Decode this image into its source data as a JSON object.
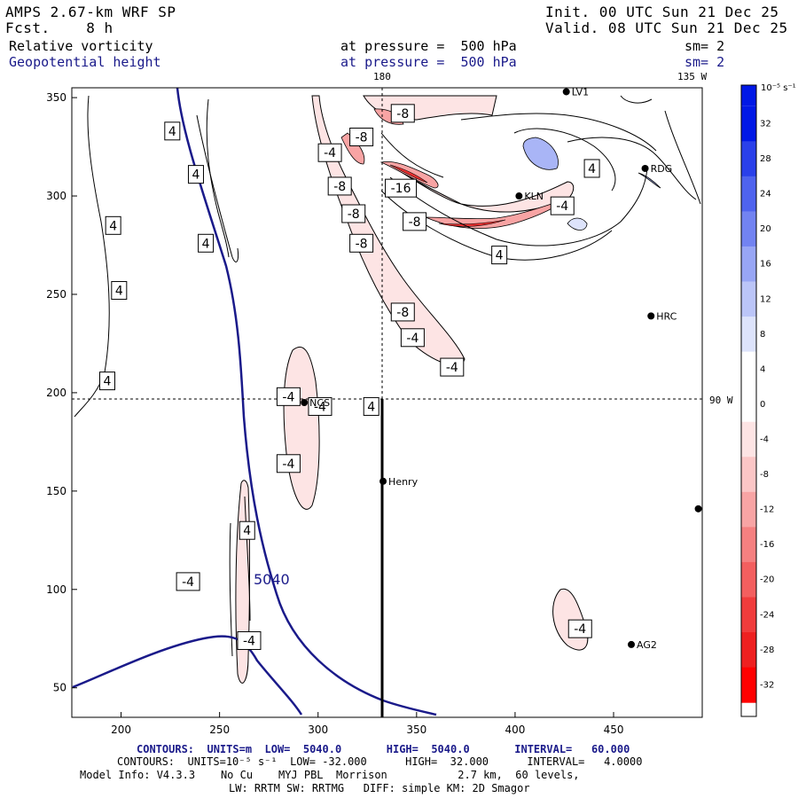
{
  "header": {
    "model": "AMPS 2.67-km WRF SP",
    "forecast": "Fcst.    8 h",
    "init": "Init. 00 UTC Sun 21 Dec 25",
    "valid": "Valid. 08 UTC Sun 21 Dec 25",
    "field1_name": "Relative vorticity",
    "field1_level": "at pressure =  500 hPa",
    "field1_sm": "sm= 2",
    "field2_name": "Geopotential height",
    "field2_level": "at pressure =  500 hPa",
    "field2_sm": "sm= 2"
  },
  "map": {
    "longitude_labels": [
      "180",
      "135 W",
      "90 W"
    ],
    "x_ticks": [
      "200",
      "250",
      "300",
      "350",
      "400",
      "450"
    ],
    "y_ticks": [
      "350",
      "300",
      "250",
      "200",
      "150",
      "100",
      "50"
    ],
    "x_range": [
      175,
      495
    ],
    "y_range": [
      35,
      355
    ],
    "stations": [
      {
        "name": "LV1",
        "x": 426,
        "y": 353
      },
      {
        "name": "RDG",
        "x": 466,
        "y": 314
      },
      {
        "name": "KLN",
        "x": 402,
        "y": 300
      },
      {
        "name": "HRC",
        "x": 469,
        "y": 239
      },
      {
        "name": "NCS",
        "x": 293,
        "y": 195
      },
      {
        "name": "Henry",
        "x": 333,
        "y": 155
      },
      {
        "name": "",
        "x": 493,
        "y": 141
      },
      {
        "name": "AG2",
        "x": 459,
        "y": 72
      }
    ],
    "vorticity_labels": [
      {
        "text": "4",
        "x": 226,
        "y": 333
      },
      {
        "text": "4",
        "x": 238,
        "y": 311
      },
      {
        "text": "4",
        "x": 243,
        "y": 276
      },
      {
        "text": "4",
        "x": 196,
        "y": 285
      },
      {
        "text": "4",
        "x": 199,
        "y": 252
      },
      {
        "text": "4",
        "x": 193,
        "y": 206
      },
      {
        "text": "4",
        "x": 264,
        "y": 130
      },
      {
        "text": "4",
        "x": 439,
        "y": 314
      },
      {
        "text": "4",
        "x": 392,
        "y": 270
      },
      {
        "text": "-4",
        "x": 306,
        "y": 322
      },
      {
        "text": "-8",
        "x": 343,
        "y": 342
      },
      {
        "text": "-8",
        "x": 322,
        "y": 330
      },
      {
        "text": "-8",
        "x": 311,
        "y": 305
      },
      {
        "text": "-8",
        "x": 318,
        "y": 291
      },
      {
        "text": "-8",
        "x": 322,
        "y": 276
      },
      {
        "text": "-16",
        "x": 342,
        "y": 304
      },
      {
        "text": "-8",
        "x": 349,
        "y": 287
      },
      {
        "text": "-4",
        "x": 424,
        "y": 295
      },
      {
        "text": "-8",
        "x": 343,
        "y": 241
      },
      {
        "text": "-4",
        "x": 348,
        "y": 228
      },
      {
        "text": "-4",
        "x": 368,
        "y": 213
      },
      {
        "text": "-4",
        "x": 285,
        "y": 198
      },
      {
        "text": "-4",
        "x": 301,
        "y": 193
      },
      {
        "text": "4",
        "x": 327,
        "y": 193
      },
      {
        "text": "-4",
        "x": 285,
        "y": 164
      },
      {
        "text": "-4",
        "x": 234,
        "y": 104
      },
      {
        "text": "-4",
        "x": 265,
        "y": 74
      },
      {
        "text": "-4",
        "x": 433,
        "y": 80
      }
    ],
    "height_contour_label": "5040"
  },
  "colorbar": {
    "unit": "10⁻⁵ s⁻¹",
    "labels": [
      "32",
      "28",
      "24",
      "20",
      "16",
      "12",
      "8",
      "4",
      "0",
      "-4",
      "-8",
      "-12",
      "-16",
      "-20",
      "-24",
      "-28",
      "-32"
    ],
    "colors": [
      "#0018e6",
      "#2a40ea",
      "#4f63ee",
      "#7283f1",
      "#98a6f5",
      "#bbc5f8",
      "#dde3fb",
      "#ffffff",
      "#ffffff",
      "#fde4e4",
      "#fbc6c6",
      "#f8a4a4",
      "#f58080",
      "#f35f5f",
      "#f03c3c",
      "#ee2020",
      "#ff0000"
    ]
  },
  "footer": {
    "line1": "CONTOURS:  UNITS=m  LOW=  5040.0       HIGH=  5040.0       INTERVAL=   60.000",
    "line2": "CONTOURS:  UNITS=10⁻⁵ s⁻¹  LOW= -32.000      HIGH=  32.000      INTERVAL=   4.0000",
    "line3": "Model Info: V4.3.3    No Cu    MYJ PBL  Morrison           2.7 km,  60 levels,",
    "line4": "LW: RRTM SW: RRTMG   DIFF: simple KM: 2D Smagor"
  },
  "colors": {
    "height_contour": "#1a1a8a",
    "negative": "#f06060",
    "positive": "#6f7fe8"
  }
}
